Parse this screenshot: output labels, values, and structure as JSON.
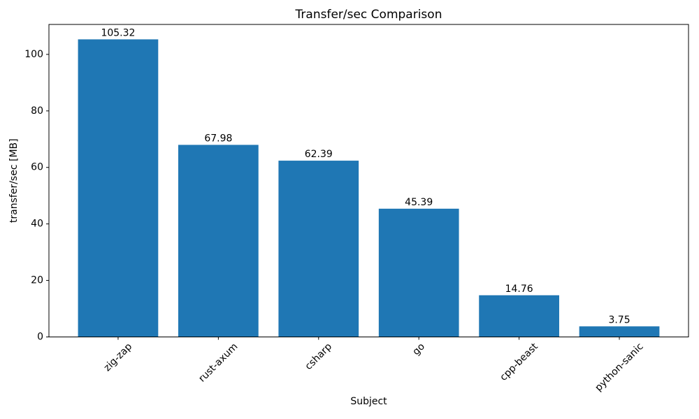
{
  "figure": {
    "title": "Transfer/sec Comparison",
    "xlabel": "Subject",
    "ylabel": "transfer/sec [MB]"
  },
  "chart_data": {
    "type": "bar",
    "categories": [
      "zig-zap",
      "rust-axum",
      "csharp",
      "go",
      "cpp-beast",
      "python-sanic"
    ],
    "values": [
      105.32,
      67.98,
      62.39,
      45.39,
      14.76,
      3.75
    ],
    "value_labels": [
      "105.32",
      "67.98",
      "62.39",
      "45.39",
      "14.76",
      "3.75"
    ],
    "title": "Transfer/sec Comparison",
    "xlabel": "Subject",
    "ylabel": "transfer/sec [MB]",
    "ylim": [
      0,
      110.6
    ],
    "yticks": [
      0,
      20,
      40,
      60,
      80,
      100
    ],
    "bar_color": "#1f77b4",
    "bar_rel_width": 0.8,
    "x_tick_rotation_deg": 45,
    "grid": false,
    "legend": null
  }
}
